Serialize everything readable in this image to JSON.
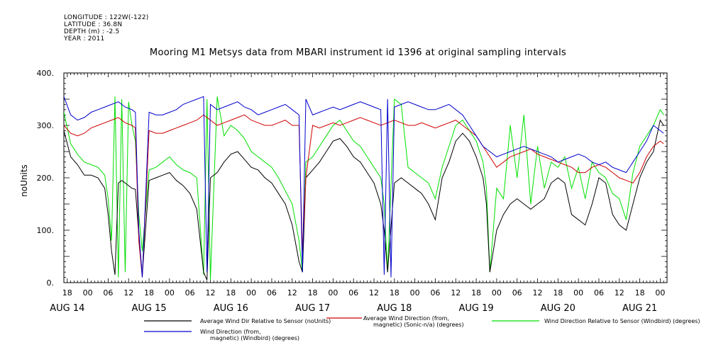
{
  "header": {
    "meta_lines": [
      "LONGITUDE : 122W(-122)",
      "LATITUDE : 36.8N",
      "DEPTH (m) : -2.5",
      "YEAR : 2011"
    ]
  },
  "colors": {
    "series_black": "#000000",
    "series_red": "#d00000",
    "series_green": "#00e000",
    "series_blue": "#0000cc"
  },
  "chart_data": {
    "type": "line",
    "title": "Mooring M1 Metsys data from MBARI instrument id 1396 at original sampling intervals",
    "ylabel": "noUnits",
    "ylim": [
      0,
      400
    ],
    "y_ticks": [
      0,
      100,
      200,
      300,
      400
    ],
    "y_tick_labels": [
      "0.",
      "100.",
      "200.",
      "300.",
      "400."
    ],
    "xlim_hours": [
      -7,
      170
    ],
    "x_hour_ticks": [
      {
        "h": -6,
        "label": "18"
      },
      {
        "h": 0,
        "label": "00"
      },
      {
        "h": 6,
        "label": "06"
      },
      {
        "h": 12,
        "label": "12"
      },
      {
        "h": 18,
        "label": "18"
      },
      {
        "h": 24,
        "label": "00"
      },
      {
        "h": 30,
        "label": "06"
      },
      {
        "h": 36,
        "label": "12"
      },
      {
        "h": 42,
        "label": "18"
      },
      {
        "h": 48,
        "label": "00"
      },
      {
        "h": 54,
        "label": "06"
      },
      {
        "h": 60,
        "label": "12"
      },
      {
        "h": 66,
        "label": "18"
      },
      {
        "h": 72,
        "label": "00"
      },
      {
        "h": 78,
        "label": "06"
      },
      {
        "h": 84,
        "label": "12"
      },
      {
        "h": 90,
        "label": "18"
      },
      {
        "h": 96,
        "label": "00"
      },
      {
        "h": 102,
        "label": "06"
      },
      {
        "h": 108,
        "label": "12"
      },
      {
        "h": 114,
        "label": "18"
      },
      {
        "h": 120,
        "label": "00"
      },
      {
        "h": 126,
        "label": "06"
      },
      {
        "h": 132,
        "label": "12"
      },
      {
        "h": 138,
        "label": "18"
      },
      {
        "h": 144,
        "label": "00"
      },
      {
        "h": 150,
        "label": "06"
      },
      {
        "h": 156,
        "label": "12"
      },
      {
        "h": 162,
        "label": "18"
      },
      {
        "h": 168,
        "label": "00"
      },
      {
        "h": 174,
        "label": "06"
      },
      {
        "h": 180,
        "label": "12"
      }
    ],
    "x_day_labels": [
      {
        "h": -6,
        "label": "AUG 14"
      },
      {
        "h": 18,
        "label": "AUG 15"
      },
      {
        "h": 42,
        "label": "AUG 16"
      },
      {
        "h": 66,
        "label": "AUG 17"
      },
      {
        "h": 90,
        "label": "AUG 18"
      },
      {
        "h": 114,
        "label": "AUG 19"
      },
      {
        "h": 138,
        "label": "AUG 20"
      },
      {
        "h": 162,
        "label": "AUG 21"
      }
    ],
    "series": [
      {
        "name": "Average Wind Dir Relative to Sensor (noUnits)",
        "color": "#000000",
        "x": [
          -7,
          -5,
          -3,
          -1,
          1,
          3,
          5,
          6,
          7,
          8,
          9,
          10,
          11,
          12,
          13,
          14,
          15,
          16,
          18,
          20,
          22,
          24,
          26,
          28,
          30,
          32,
          34,
          35,
          36,
          38,
          40,
          42,
          44,
          46,
          48,
          50,
          52,
          54,
          56,
          58,
          60,
          62,
          63,
          64,
          66,
          68,
          70,
          72,
          74,
          76,
          78,
          80,
          82,
          84,
          86,
          87,
          88,
          90,
          92,
          94,
          96,
          98,
          100,
          102,
          104,
          106,
          108,
          110,
          112,
          114,
          116,
          117,
          118,
          120,
          122,
          124,
          126,
          128,
          130,
          132,
          134,
          136,
          138,
          140,
          142,
          144,
          146,
          148,
          150,
          152,
          154,
          156,
          158,
          160,
          162,
          164,
          166,
          168,
          169
        ],
        "y": [
          290,
          240,
          225,
          205,
          205,
          200,
          180,
          130,
          60,
          15,
          190,
          195,
          190,
          185,
          180,
          178,
          90,
          15,
          195,
          200,
          205,
          210,
          195,
          185,
          170,
          140,
          20,
          5,
          200,
          210,
          230,
          245,
          250,
          235,
          220,
          215,
          200,
          190,
          170,
          150,
          110,
          40,
          20,
          200,
          215,
          230,
          250,
          270,
          275,
          260,
          240,
          230,
          210,
          190,
          150,
          100,
          20,
          190,
          200,
          190,
          180,
          170,
          150,
          120,
          200,
          230,
          270,
          285,
          270,
          240,
          200,
          150,
          20,
          100,
          130,
          150,
          160,
          150,
          140,
          150,
          160,
          190,
          200,
          190,
          130,
          120,
          110,
          150,
          200,
          190,
          130,
          110,
          100,
          150,
          200,
          230,
          250,
          310,
          300
        ]
      },
      {
        "name": "Average Wind Direction (from, magnetic) (Sonic-n/a) (degrees)",
        "color": "#d00000",
        "x": [
          -7,
          -5,
          -3,
          -1,
          1,
          3,
          5,
          7,
          9,
          11,
          13,
          14,
          15,
          16,
          18,
          20,
          22,
          24,
          26,
          28,
          30,
          32,
          34,
          36,
          38,
          40,
          42,
          44,
          46,
          48,
          50,
          52,
          54,
          56,
          58,
          60,
          62,
          63,
          64,
          66,
          68,
          70,
          72,
          74,
          76,
          78,
          80,
          82,
          84,
          86,
          88,
          90,
          92,
          94,
          96,
          98,
          100,
          102,
          104,
          106,
          108,
          110,
          112,
          114,
          116,
          118,
          120,
          122,
          124,
          126,
          128,
          130,
          132,
          134,
          136,
          138,
          140,
          142,
          144,
          146,
          148,
          150,
          152,
          154,
          156,
          158,
          160,
          162,
          164,
          166,
          168,
          169
        ],
        "y": [
          300,
          285,
          280,
          285,
          295,
          300,
          305,
          310,
          315,
          305,
          300,
          295,
          80,
          10,
          290,
          285,
          285,
          290,
          295,
          300,
          305,
          310,
          320,
          310,
          300,
          305,
          310,
          315,
          320,
          310,
          305,
          300,
          300,
          305,
          310,
          300,
          300,
          60,
          200,
          300,
          295,
          300,
          305,
          300,
          305,
          310,
          315,
          310,
          305,
          300,
          305,
          310,
          305,
          300,
          300,
          305,
          300,
          295,
          300,
          305,
          310,
          300,
          290,
          280,
          260,
          240,
          220,
          230,
          240,
          245,
          250,
          255,
          245,
          240,
          235,
          230,
          225,
          220,
          210,
          210,
          220,
          225,
          220,
          210,
          200,
          195,
          190,
          210,
          240,
          260,
          270,
          265
        ]
      },
      {
        "name": "Wind Direction Relative to Sensor (Windbird) (degrees)",
        "color": "#00e000",
        "x": [
          -7,
          -5,
          -3,
          -1,
          1,
          3,
          5,
          6,
          7,
          8,
          9,
          10,
          11,
          12,
          13,
          14,
          15,
          16,
          18,
          20,
          22,
          24,
          26,
          28,
          30,
          32,
          34,
          35,
          36,
          38,
          40,
          42,
          44,
          46,
          48,
          50,
          52,
          54,
          56,
          58,
          60,
          62,
          63,
          64,
          66,
          68,
          70,
          72,
          74,
          76,
          78,
          80,
          82,
          84,
          86,
          87,
          88,
          90,
          92,
          94,
          96,
          98,
          100,
          102,
          104,
          106,
          108,
          110,
          112,
          114,
          116,
          117,
          118,
          120,
          122,
          124,
          126,
          128,
          130,
          132,
          134,
          136,
          138,
          140,
          142,
          144,
          146,
          148,
          150,
          152,
          154,
          156,
          158,
          160,
          162,
          164,
          166,
          168,
          169
        ],
        "y": [
          325,
          265,
          245,
          230,
          225,
          220,
          205,
          160,
          80,
          355,
          10,
          350,
          20,
          345,
          300,
          270,
          130,
          60,
          215,
          220,
          230,
          240,
          225,
          215,
          210,
          200,
          15,
          350,
          5,
          355,
          280,
          300,
          290,
          275,
          250,
          240,
          230,
          220,
          200,
          175,
          150,
          80,
          20,
          230,
          240,
          260,
          280,
          300,
          310,
          290,
          270,
          260,
          240,
          220,
          200,
          150,
          20,
          350,
          340,
          220,
          210,
          200,
          190,
          160,
          220,
          260,
          300,
          310,
          290,
          270,
          230,
          180,
          20,
          180,
          160,
          300,
          200,
          320,
          150,
          260,
          180,
          230,
          220,
          240,
          180,
          220,
          160,
          230,
          210,
          200,
          170,
          160,
          120,
          210,
          260,
          280,
          300,
          330,
          320
        ]
      },
      {
        "name": "Wind Direction (from, magnetic) (Windbird) (degrees)",
        "color": "#0000cc",
        "x": [
          -7,
          -5,
          -3,
          -1,
          1,
          3,
          5,
          7,
          9,
          11,
          13,
          14,
          15,
          16,
          18,
          20,
          22,
          24,
          26,
          28,
          30,
          32,
          34,
          35,
          36,
          38,
          40,
          42,
          44,
          46,
          48,
          50,
          52,
          54,
          56,
          58,
          60,
          62,
          63,
          64,
          66,
          68,
          70,
          72,
          74,
          76,
          78,
          80,
          82,
          84,
          86,
          87,
          88,
          89,
          90,
          92,
          94,
          96,
          98,
          100,
          102,
          104,
          106,
          108,
          110,
          112,
          114,
          116,
          118,
          120,
          122,
          124,
          126,
          128,
          130,
          132,
          134,
          136,
          138,
          140,
          142,
          144,
          146,
          148,
          150,
          152,
          154,
          156,
          158,
          160,
          162,
          164,
          166,
          168,
          169
        ],
        "y": [
          355,
          320,
          310,
          315,
          325,
          330,
          335,
          340,
          345,
          335,
          330,
          325,
          100,
          10,
          325,
          320,
          320,
          325,
          330,
          340,
          345,
          350,
          355,
          20,
          340,
          330,
          335,
          340,
          345,
          335,
          330,
          320,
          325,
          330,
          335,
          340,
          330,
          320,
          20,
          350,
          320,
          325,
          330,
          335,
          330,
          335,
          340,
          345,
          340,
          335,
          330,
          15,
          350,
          10,
          335,
          340,
          345,
          340,
          335,
          330,
          330,
          335,
          340,
          330,
          320,
          300,
          280,
          260,
          250,
          240,
          245,
          250,
          255,
          260,
          255,
          250,
          245,
          240,
          230,
          235,
          240,
          245,
          240,
          230,
          225,
          230,
          220,
          215,
          210,
          230,
          250,
          270,
          300,
          290,
          285
        ]
      }
    ],
    "legend": [
      {
        "label_lines": [
          "Average Wind Dir Relative to Sensor (noUnits)"
        ],
        "color": "#000000"
      },
      {
        "label_lines": [
          "Average Wind Direction (from,",
          "magnetic) (Sonic-n/a) (degrees)"
        ],
        "color": "#d00000"
      },
      {
        "label_lines": [
          "Wind Direction Relative to Sensor (Windbird) (degrees)"
        ],
        "color": "#00e000"
      },
      {
        "label_lines": [
          "Wind Direction (from,",
          "magnetic) (Windbird) (degrees)"
        ],
        "color": "#0000cc"
      }
    ],
    "legend_placement": "bottom"
  }
}
